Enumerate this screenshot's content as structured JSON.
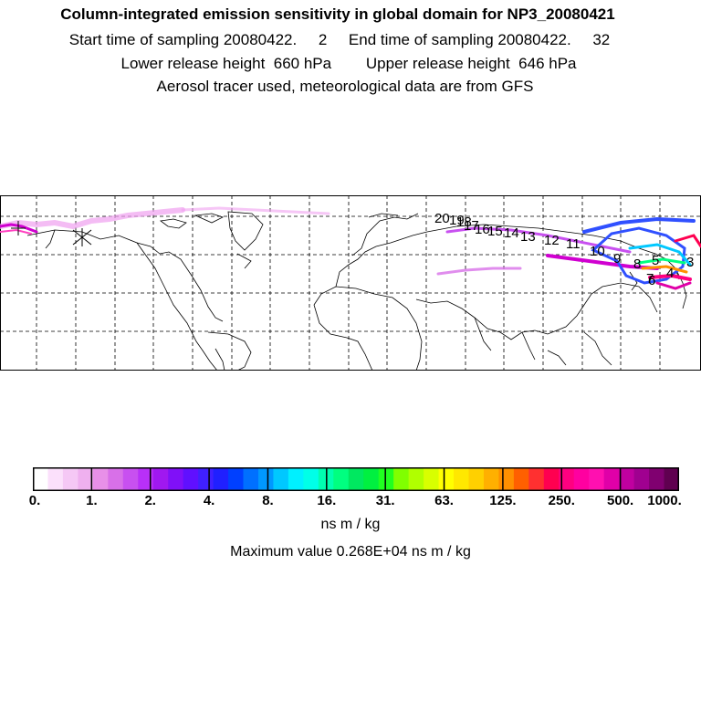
{
  "header": {
    "title": "Column-integrated emission sensitivity in global domain for NP3_20080421",
    "line2": "Start time of sampling 20080422.     2     End time of sampling 20080422.     32",
    "line3": "Lower release height  660 hPa        Upper release height  646 hPa",
    "line4": "Aerosol tracer used, meteorological data are from GFS"
  },
  "map": {
    "projection": "equirectangular",
    "grid": "dashed lat/lon lines",
    "trajectory_labels": [
      "20",
      "19",
      "18",
      "17",
      "16",
      "15",
      "14",
      "13",
      "12",
      "11",
      "10",
      "9",
      "8",
      "7",
      "6",
      "5",
      "4",
      "3"
    ],
    "colors": {
      "plume_magenta": "#d000d0",
      "plume_pink": "#ff40c0",
      "plume_light": "#f0a0f0",
      "plume_blue": "#3050ff",
      "coast": "#000000"
    }
  },
  "colorbar": {
    "tick_labels": [
      "0.",
      "1.",
      "2.",
      "4.",
      "8.",
      "16.",
      "31.",
      "63.",
      "125.",
      "250.",
      "500.",
      "1000."
    ],
    "unit": "ns m / kg",
    "colors": [
      "#ffffff",
      "#fbe0fb",
      "#f5c8f5",
      "#efb0ef",
      "#e890e8",
      "#d870e8",
      "#c850f0",
      "#b830f8",
      "#a018f0",
      "#8010f8",
      "#6010ff",
      "#4020ff",
      "#2020ff",
      "#0040ff",
      "#0070ff",
      "#0098ff",
      "#00c8ff",
      "#00f0ff",
      "#00ffe8",
      "#00ffb0",
      "#00ff80",
      "#00e860",
      "#00f040",
      "#20ff20",
      "#80ff00",
      "#b0ff00",
      "#d8ff00",
      "#ffff00",
      "#ffe800",
      "#ffd000",
      "#ffb000",
      "#ff9000",
      "#ff6000",
      "#ff3030",
      "#ff0050",
      "#ff0080",
      "#ff00a0",
      "#ff10b0",
      "#e000a8",
      "#c000a0",
      "#a00090",
      "#800070",
      "#600050"
    ]
  },
  "maximum_value": "Maximum value  0.268E+04 ns m / kg"
}
